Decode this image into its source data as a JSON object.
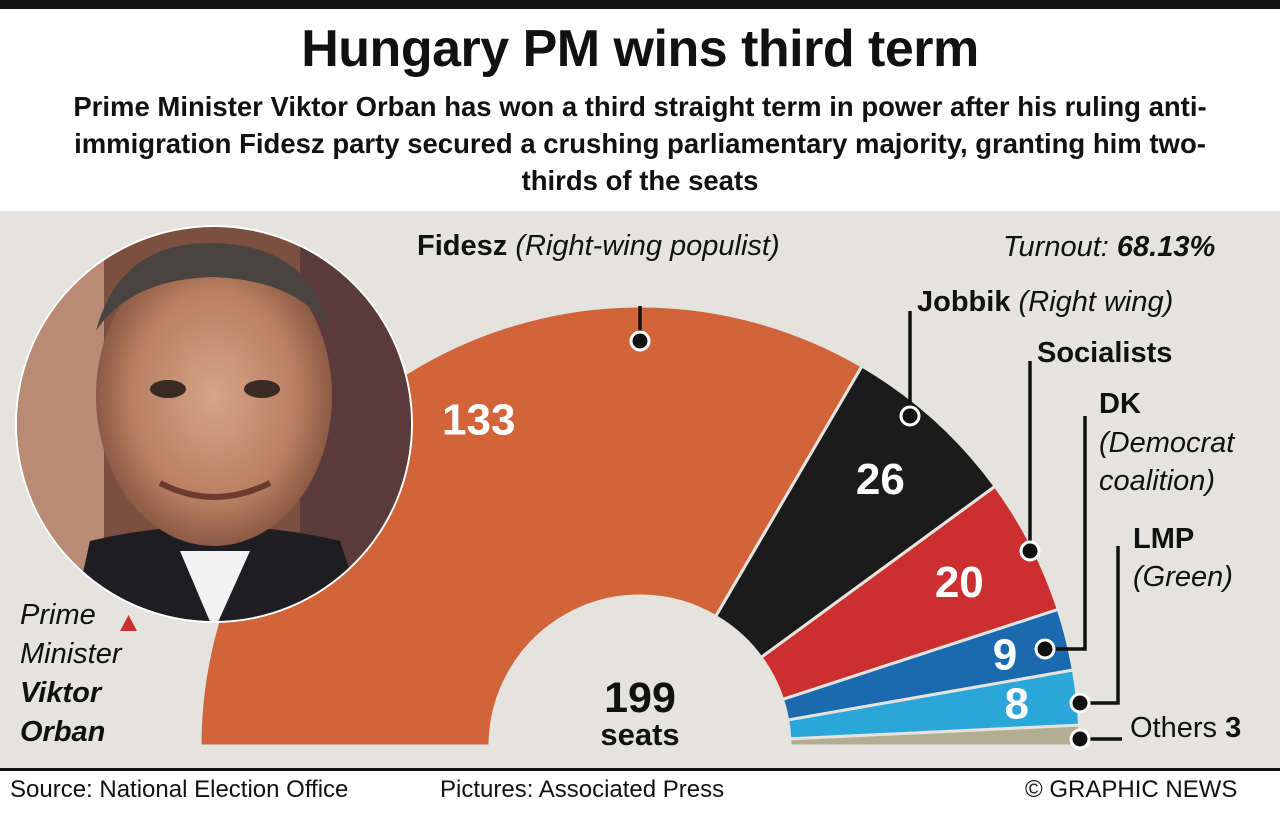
{
  "title": "Hungary PM wins third term",
  "subtitle": "Prime Minister Viktor Orban has won a third straight term in power after his ruling anti-immigration Fidesz party secured a crushing parliamentary majority, granting him two-thirds of the seats",
  "turnout": {
    "label": "Turnout:",
    "value": "68.13%"
  },
  "center": {
    "number": "199",
    "unit": "seats"
  },
  "photo_caption": {
    "line1": "Prime",
    "line2": "Minister",
    "name1": "Viktor",
    "name2": "Orban"
  },
  "labels": {
    "fidesz": {
      "name": "Fidesz",
      "desc": "(Right-wing populist)"
    },
    "jobbik": {
      "name": "Jobbik",
      "desc": "(Right wing)"
    },
    "socialists": {
      "name": "Socialists"
    },
    "dk": {
      "name": "DK",
      "desc1": "(Democrat",
      "desc2": "coalition)"
    },
    "lmp": {
      "name": "LMP",
      "desc": "(Green)"
    },
    "others": {
      "name": "Others",
      "value": "3"
    }
  },
  "chart_data": {
    "type": "pie",
    "variant": "semicircle-parliament",
    "total": 199,
    "series": [
      {
        "name": "Fidesz",
        "value": 133,
        "color": "#d2643a"
      },
      {
        "name": "Jobbik",
        "value": 26,
        "color": "#1b1b1b"
      },
      {
        "name": "Socialists",
        "value": 20,
        "color": "#cc2f2f"
      },
      {
        "name": "DK",
        "value": 9,
        "color": "#1b6aaf"
      },
      {
        "name": "LMP",
        "value": 8,
        "color": "#2ba6d9"
      },
      {
        "name": "Others",
        "value": 3,
        "color": "#b4ad93"
      }
    ]
  },
  "footer": {
    "source": "Source: National Election Office",
    "pictures": "Pictures: Associated Press",
    "credit": "© GRAPHIC NEWS"
  },
  "colors": {
    "panel_bg": "#e4e3dd",
    "segment_text": "#ffffff",
    "pointer_triangle": "#cc2f2f"
  },
  "icons": {
    "photo": "portrait-photo"
  }
}
